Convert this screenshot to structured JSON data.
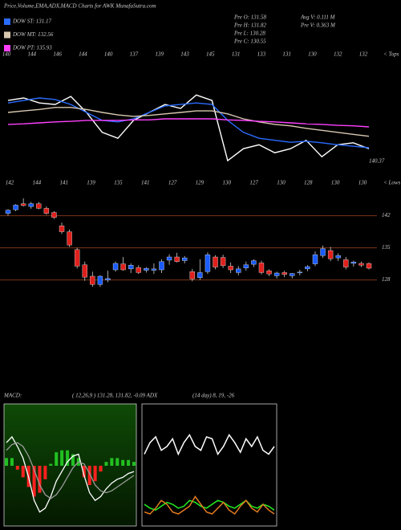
{
  "chart_data": [
    {
      "type": "line",
      "title": "Price,Volume,EMA,ADX,MACD Charts for AWK MunafaSutra.com",
      "info": [
        "Pre  O: 131.58",
        "Pre  H: 131.82",
        "Pre  L: 130.28",
        "Pre  C: 130.55",
        "Avg  V: 0.111 M",
        "Pre  V: 0.363 M"
      ],
      "tops": [
        140,
        144,
        146,
        144,
        140,
        137,
        139,
        143,
        145,
        131,
        133,
        131,
        130,
        132,
        132
      ],
      "tops_label": "< Tops",
      "lows": [
        142,
        144,
        141,
        139,
        135,
        141,
        127,
        129,
        130,
        127,
        130,
        128,
        130,
        130
      ],
      "lows_label": "< Lows",
      "annotation": "140.37",
      "ylim": [
        125,
        150
      ],
      "series": [
        {
          "color": "#ffffff",
          "values": [
            139.5,
            140.0,
            139.0,
            138.7,
            140.3,
            137.1,
            133.1,
            131.9,
            135.5,
            137.1,
            138.7,
            137.9,
            140.6,
            139.5,
            127.4,
            129.8,
            130.6,
            129.0,
            129.8,
            131.5,
            128.2,
            130.6,
            131.0,
            129.8
          ]
        },
        {
          "name": "DOW ST: 131.17",
          "color": "#2a6cff",
          "values": [
            139.0,
            139.5,
            140.0,
            139.7,
            138.7,
            137.1,
            135.5,
            135.2,
            135.8,
            137.1,
            138.4,
            138.7,
            139.0,
            138.7,
            135.5,
            133.1,
            131.9,
            131.5,
            131.1,
            131.3,
            131.0,
            130.6,
            130.3,
            130.0
          ]
        },
        {
          "name": "DOW MT: 132.56",
          "color": "#d8c8b0",
          "values": [
            137.1,
            137.4,
            137.7,
            138.1,
            138.1,
            137.7,
            137.1,
            136.6,
            136.3,
            136.5,
            136.8,
            137.1,
            137.4,
            137.4,
            136.8,
            135.8,
            135.2,
            134.7,
            134.4,
            133.9,
            133.5,
            133.1,
            132.7,
            132.3
          ]
        },
        {
          "name": "DOW PT: 135.93",
          "color": "#ff40ff",
          "values": [
            134.7,
            134.8,
            135.0,
            135.2,
            135.3,
            135.5,
            135.5,
            135.5,
            135.6,
            135.6,
            135.8,
            135.8,
            135.8,
            135.8,
            135.6,
            135.5,
            135.3,
            135.2,
            135.0,
            134.8,
            134.7,
            134.5,
            134.4,
            134.2
          ]
        }
      ]
    },
    {
      "type": "candlestick",
      "up_color": "#1a5cff",
      "down_color": "#e0201c",
      "ylim": [
        119,
        147
      ],
      "yticks": [
        128,
        135,
        142
      ],
      "open": [
        142.5,
        143.3,
        144.6,
        144.0,
        144.6,
        143.6,
        142.7,
        139.8,
        138.5,
        134.6,
        131.3,
        128.8,
        127.0,
        128.0,
        130.2,
        131.5,
        130.4,
        130.7,
        130.1,
        130.1,
        130.2,
        132.3,
        133.0,
        132.2,
        129.8,
        128.5,
        129.8,
        133.0,
        132.9,
        131.0,
        129.6,
        130.6,
        131.4,
        131.7,
        130.0,
        128.9,
        129.6,
        128.9,
        129.6,
        130.4,
        131.5,
        133.3,
        134.4,
        132.8,
        132.4,
        131.6,
        131.6,
        131.58
      ],
      "high": [
        143.4,
        144.5,
        145.8,
        145.0,
        145.0,
        144.0,
        143.0,
        140.5,
        139.0,
        135.0,
        132.0,
        129.8,
        129.0,
        130.0,
        132.0,
        133.0,
        131.6,
        131.2,
        130.8,
        131.6,
        132.5,
        133.6,
        133.9,
        133.2,
        130.4,
        132.5,
        134.0,
        133.4,
        133.5,
        131.8,
        131.0,
        132.0,
        132.5,
        132.2,
        130.3,
        129.8,
        130.0,
        129.5,
        130.2,
        131.2,
        134.2,
        135.5,
        135.2,
        133.8,
        133.0,
        132.2,
        132.0,
        131.82
      ],
      "low": [
        142.0,
        143.0,
        144.0,
        143.5,
        143.4,
        142.2,
        141.3,
        138.0,
        135.2,
        130.5,
        127.8,
        126.5,
        126.5,
        127.5,
        129.8,
        130.0,
        129.5,
        129.3,
        129.6,
        129.3,
        129.5,
        131.3,
        131.8,
        131.6,
        127.7,
        128.0,
        129.3,
        130.3,
        130.6,
        129.5,
        129.0,
        130.0,
        130.8,
        129.2,
        128.8,
        128.3,
        128.6,
        128.3,
        129.0,
        129.9,
        131.0,
        132.8,
        132.1,
        132.1,
        130.3,
        130.9,
        130.8,
        130.28
      ],
      "close": [
        143.2,
        144.3,
        144.2,
        144.6,
        143.6,
        142.5,
        141.6,
        138.5,
        135.6,
        131.0,
        128.6,
        127.0,
        128.8,
        128.3,
        131.6,
        130.2,
        131.2,
        129.6,
        130.5,
        130.4,
        132.0,
        133.0,
        132.0,
        132.8,
        128.2,
        129.6,
        133.5,
        130.8,
        131.1,
        130.2,
        130.4,
        131.3,
        132.2,
        129.6,
        129.3,
        129.5,
        129.2,
        129.4,
        129.7,
        130.9,
        133.5,
        134.8,
        132.6,
        133.3,
        130.8,
        131.9,
        131.2,
        130.55
      ]
    },
    {
      "type": "macd",
      "title": "MACD:",
      "subtitle": "( 12,26,9 ) 131.28, 131.82, -0.09 ADX",
      "ylim": [
        -3,
        3
      ],
      "pos_color": "#22c022",
      "neg_color": "#ff2020",
      "histogram": [
        0.4,
        0.4,
        -0.2,
        -0.6,
        -1.1,
        -1.6,
        -1.4,
        -0.7,
        0.1,
        0.7,
        0.8,
        0.8,
        0.6,
        0.4,
        -0.6,
        -1.0,
        -0.8,
        -0.3,
        0.2,
        0.4,
        0.4,
        0.3,
        0.3,
        0.2
      ],
      "series": [
        {
          "color": "#ffffff",
          "values": [
            1.2,
            1.5,
            1.0,
            0.4,
            -0.6,
            -1.8,
            -2.4,
            -2.2,
            -1.6,
            -0.8,
            -0.3,
            0.2,
            0.5,
            0.6,
            -0.5,
            -1.4,
            -1.8,
            -1.6,
            -1.2,
            -0.9,
            -0.7,
            -0.6,
            -0.4,
            -0.3
          ]
        },
        {
          "color": "#9a9a9a",
          "values": [
            0.8,
            1.1,
            1.2,
            1.0,
            0.5,
            -0.2,
            -1.0,
            -1.5,
            -1.7,
            -1.5,
            -1.1,
            -0.6,
            -0.1,
            0.2,
            0.1,
            -0.4,
            -1.0,
            -1.3,
            -1.4,
            -1.3,
            -1.1,
            -0.9,
            -0.7,
            -0.5
          ]
        }
      ]
    },
    {
      "type": "adx",
      "subtitle": "(14 day) 8, 19, -26",
      "ylim": [
        0,
        60
      ],
      "series": [
        {
          "color": "#ffffff",
          "values": [
            36,
            42,
            45,
            38,
            40,
            44,
            36,
            42,
            46,
            40,
            38,
            45,
            44,
            36,
            40,
            46,
            42,
            37,
            44,
            40,
            45,
            38,
            36,
            40
          ]
        },
        {
          "color": "#22ee22",
          "values": [
            10,
            8,
            7,
            9,
            11,
            10,
            8,
            9,
            12,
            11,
            9,
            8,
            10,
            12,
            11,
            9,
            8,
            10,
            12,
            9,
            8,
            10,
            9,
            7
          ]
        },
        {
          "color": "#e07a20",
          "values": [
            6,
            5,
            8,
            12,
            10,
            6,
            5,
            7,
            9,
            14,
            10,
            6,
            5,
            8,
            11,
            7,
            5,
            9,
            12,
            8,
            6,
            10,
            7,
            5
          ]
        }
      ]
    }
  ]
}
